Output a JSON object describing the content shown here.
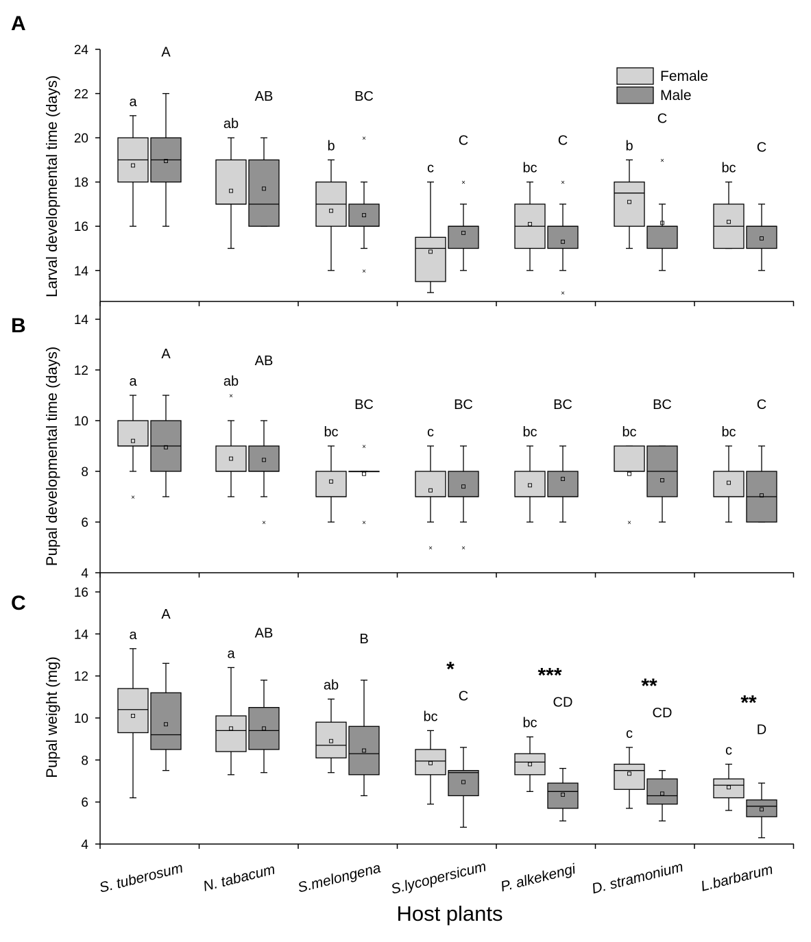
{
  "chart_data": {
    "type": "box",
    "categories": [
      "S. tuberosum",
      "N. tabacum",
      "S.melongena",
      "S.lycopersicum",
      "P. alkekengi",
      "D. stramonium",
      "L.barbarum"
    ],
    "xlabel": "Host plants",
    "legend": {
      "position": "top-right",
      "entries": [
        {
          "name": "Female",
          "color": "#d3d3d3"
        },
        {
          "name": "Male",
          "color": "#929292"
        }
      ]
    },
    "panels": [
      {
        "label": "A",
        "ylabel": "Larval developmental time (days)",
        "ylim": [
          12.6,
          24
        ],
        "yticks": [
          14,
          16,
          18,
          20,
          22,
          24
        ],
        "series": [
          {
            "name": "Female",
            "boxes": [
              {
                "q1": 18,
                "median": 19,
                "q3": 20,
                "whisker_low": 16,
                "whisker_high": 21,
                "mean": 18.75,
                "outliers": []
              },
              {
                "q1": 17,
                "median": 17,
                "q3": 19,
                "whisker_low": 15,
                "whisker_high": 20,
                "mean": 17.6,
                "outliers": []
              },
              {
                "q1": 16,
                "median": 17,
                "q3": 18,
                "whisker_low": 14,
                "whisker_high": 19,
                "mean": 16.7,
                "outliers": []
              },
              {
                "q1": 13.5,
                "median": 15,
                "q3": 15.5,
                "whisker_low": 13,
                "whisker_high": 18,
                "mean": 14.85,
                "outliers": []
              },
              {
                "q1": 15,
                "median": 16,
                "q3": 17,
                "whisker_low": 14,
                "whisker_high": 18,
                "mean": 16.1,
                "outliers": []
              },
              {
                "q1": 16,
                "median": 17.5,
                "q3": 18,
                "whisker_low": 15,
                "whisker_high": 19,
                "mean": 17.1,
                "outliers": []
              },
              {
                "q1": 15,
                "median": 16,
                "q3": 17,
                "whisker_low": 15,
                "whisker_high": 18,
                "mean": 16.2,
                "outliers": []
              }
            ]
          },
          {
            "name": "Male",
            "boxes": [
              {
                "q1": 18,
                "median": 19,
                "q3": 20,
                "whisker_low": 16,
                "whisker_high": 22,
                "mean": 18.95,
                "outliers": []
              },
              {
                "q1": 16,
                "median": 17,
                "q3": 19,
                "whisker_low": 16,
                "whisker_high": 20,
                "mean": 17.7,
                "outliers": []
              },
              {
                "q1": 16,
                "median": 16,
                "q3": 17,
                "whisker_low": 15,
                "whisker_high": 18,
                "mean": 16.5,
                "outliers": [
                  20,
                  14
                ]
              },
              {
                "q1": 15,
                "median": 16,
                "q3": 16,
                "whisker_low": 14,
                "whisker_high": 17,
                "mean": 15.7,
                "outliers": [
                  18
                ]
              },
              {
                "q1": 15,
                "median": 16,
                "q3": 16,
                "whisker_low": 14,
                "whisker_high": 17,
                "mean": 15.3,
                "outliers": [
                  18,
                  13
                ]
              },
              {
                "q1": 15,
                "median": 16,
                "q3": 16,
                "whisker_low": 14,
                "whisker_high": 17,
                "mean": 16.15,
                "outliers": [
                  19
                ]
              },
              {
                "q1": 15,
                "median": 16,
                "q3": 16,
                "whisker_low": 14,
                "whisker_high": 17,
                "mean": 15.45,
                "outliers": []
              }
            ]
          }
        ],
        "female_letters": [
          "a",
          "ab",
          "b",
          "c",
          "bc",
          "b",
          "bc"
        ],
        "male_letters": [
          "A",
          "AB",
          "BC",
          "C",
          "C",
          "C",
          "C"
        ],
        "significance": [
          "",
          "",
          "",
          "",
          "",
          "",
          ""
        ]
      },
      {
        "label": "B",
        "ylabel": "Pupal developmental time (days)",
        "ylim": [
          4,
          14
        ],
        "yticks": [
          4,
          6,
          8,
          10,
          12,
          14
        ],
        "series": [
          {
            "name": "Female",
            "boxes": [
              {
                "q1": 9,
                "median": 9,
                "q3": 10,
                "whisker_low": 8,
                "whisker_high": 11,
                "mean": 9.2,
                "outliers": [
                  7
                ]
              },
              {
                "q1": 8,
                "median": 8,
                "q3": 9,
                "whisker_low": 7,
                "whisker_high": 10,
                "mean": 8.5,
                "outliers": [
                  11
                ]
              },
              {
                "q1": 7,
                "median": 7,
                "q3": 8,
                "whisker_low": 6,
                "whisker_high": 9,
                "mean": 7.6,
                "outliers": []
              },
              {
                "q1": 7,
                "median": 7,
                "q3": 8,
                "whisker_low": 6,
                "whisker_high": 9,
                "mean": 7.25,
                "outliers": [
                  5
                ]
              },
              {
                "q1": 7,
                "median": 7,
                "q3": 8,
                "whisker_low": 6,
                "whisker_high": 9,
                "mean": 7.45,
                "outliers": []
              },
              {
                "q1": 8,
                "median": 8,
                "q3": 9,
                "whisker_low": 8,
                "whisker_high": 9,
                "mean": 7.9,
                "outliers": [
                  6
                ]
              },
              {
                "q1": 7,
                "median": 7,
                "q3": 8,
                "whisker_low": 6,
                "whisker_high": 9,
                "mean": 7.55,
                "outliers": []
              }
            ]
          },
          {
            "name": "Male",
            "boxes": [
              {
                "q1": 8,
                "median": 9,
                "q3": 10,
                "whisker_low": 7,
                "whisker_high": 11,
                "mean": 8.95,
                "outliers": []
              },
              {
                "q1": 8,
                "median": 8,
                "q3": 9,
                "whisker_low": 7,
                "whisker_high": 10,
                "mean": 8.45,
                "outliers": [
                  6
                ]
              },
              {
                "q1": 8,
                "median": 8,
                "q3": 8,
                "whisker_low": 8,
                "whisker_high": 8,
                "mean": 7.9,
                "outliers": [
                  9,
                  6
                ]
              },
              {
                "q1": 7,
                "median": 7,
                "q3": 8,
                "whisker_low": 6,
                "whisker_high": 9,
                "mean": 7.4,
                "outliers": [
                  5
                ]
              },
              {
                "q1": 7,
                "median": 7,
                "q3": 8,
                "whisker_low": 6,
                "whisker_high": 9,
                "mean": 7.7,
                "outliers": []
              },
              {
                "q1": 7,
                "median": 8,
                "q3": 9,
                "whisker_low": 6,
                "whisker_high": 9,
                "mean": 7.65,
                "outliers": []
              },
              {
                "q1": 6,
                "median": 7,
                "q3": 8,
                "whisker_low": 6,
                "whisker_high": 9,
                "mean": 7.05,
                "outliers": []
              }
            ]
          }
        ],
        "female_letters": [
          "a",
          "ab",
          "bc",
          "c",
          "bc",
          "bc",
          "bc"
        ],
        "male_letters": [
          "A",
          "AB",
          "BC",
          "BC",
          "BC",
          "BC",
          "C"
        ],
        "significance": [
          "",
          "",
          "",
          "",
          "",
          "",
          ""
        ]
      },
      {
        "label": "C",
        "ylabel": "Pupal weight (mg)",
        "ylim": [
          4,
          16
        ],
        "yticks": [
          4,
          6,
          8,
          10,
          12,
          14,
          16
        ],
        "series": [
          {
            "name": "Female",
            "boxes": [
              {
                "q1": 9.3,
                "median": 10.4,
                "q3": 11.4,
                "whisker_low": 6.2,
                "whisker_high": 13.3,
                "mean": 10.1,
                "outliers": []
              },
              {
                "q1": 8.4,
                "median": 9.4,
                "q3": 10.1,
                "whisker_low": 7.3,
                "whisker_high": 12.4,
                "mean": 9.5,
                "outliers": []
              },
              {
                "q1": 8.1,
                "median": 8.7,
                "q3": 9.8,
                "whisker_low": 7.4,
                "whisker_high": 10.9,
                "mean": 8.9,
                "outliers": []
              },
              {
                "q1": 7.3,
                "median": 7.95,
                "q3": 8.5,
                "whisker_low": 5.9,
                "whisker_high": 9.4,
                "mean": 7.85,
                "outliers": []
              },
              {
                "q1": 7.3,
                "median": 7.9,
                "q3": 8.3,
                "whisker_low": 6.5,
                "whisker_high": 9.1,
                "mean": 7.8,
                "outliers": []
              },
              {
                "q1": 6.6,
                "median": 7.5,
                "q3": 7.8,
                "whisker_low": 5.7,
                "whisker_high": 8.6,
                "mean": 7.35,
                "outliers": []
              },
              {
                "q1": 6.2,
                "median": 6.8,
                "q3": 7.1,
                "whisker_low": 5.6,
                "whisker_high": 7.8,
                "mean": 6.7,
                "outliers": []
              }
            ]
          },
          {
            "name": "Male",
            "boxes": [
              {
                "q1": 8.5,
                "median": 9.2,
                "q3": 11.2,
                "whisker_low": 7.5,
                "whisker_high": 12.6,
                "mean": 9.7,
                "outliers": []
              },
              {
                "q1": 8.5,
                "median": 9.4,
                "q3": 10.5,
                "whisker_low": 7.4,
                "whisker_high": 11.8,
                "mean": 9.5,
                "outliers": []
              },
              {
                "q1": 7.3,
                "median": 8.3,
                "q3": 9.6,
                "whisker_low": 6.3,
                "whisker_high": 11.8,
                "mean": 8.45,
                "outliers": []
              },
              {
                "q1": 6.3,
                "median": 7.4,
                "q3": 7.5,
                "whisker_low": 4.8,
                "whisker_high": 8.6,
                "mean": 6.95,
                "outliers": []
              },
              {
                "q1": 5.7,
                "median": 6.5,
                "q3": 6.9,
                "whisker_low": 5.1,
                "whisker_high": 7.6,
                "mean": 6.35,
                "outliers": []
              },
              {
                "q1": 5.9,
                "median": 6.3,
                "q3": 7.1,
                "whisker_low": 5.1,
                "whisker_high": 7.5,
                "mean": 6.4,
                "outliers": []
              },
              {
                "q1": 5.3,
                "median": 5.8,
                "q3": 6.1,
                "whisker_low": 4.3,
                "whisker_high": 6.9,
                "mean": 5.65,
                "outliers": []
              }
            ]
          }
        ],
        "female_letters": [
          "a",
          "a",
          "ab",
          "bc",
          "bc",
          "c",
          "c"
        ],
        "male_letters": [
          "A",
          "AB",
          "B",
          "C",
          "CD",
          "CD",
          "D"
        ],
        "significance": [
          "",
          "",
          "",
          "*",
          "***",
          "**",
          "**"
        ]
      }
    ]
  }
}
